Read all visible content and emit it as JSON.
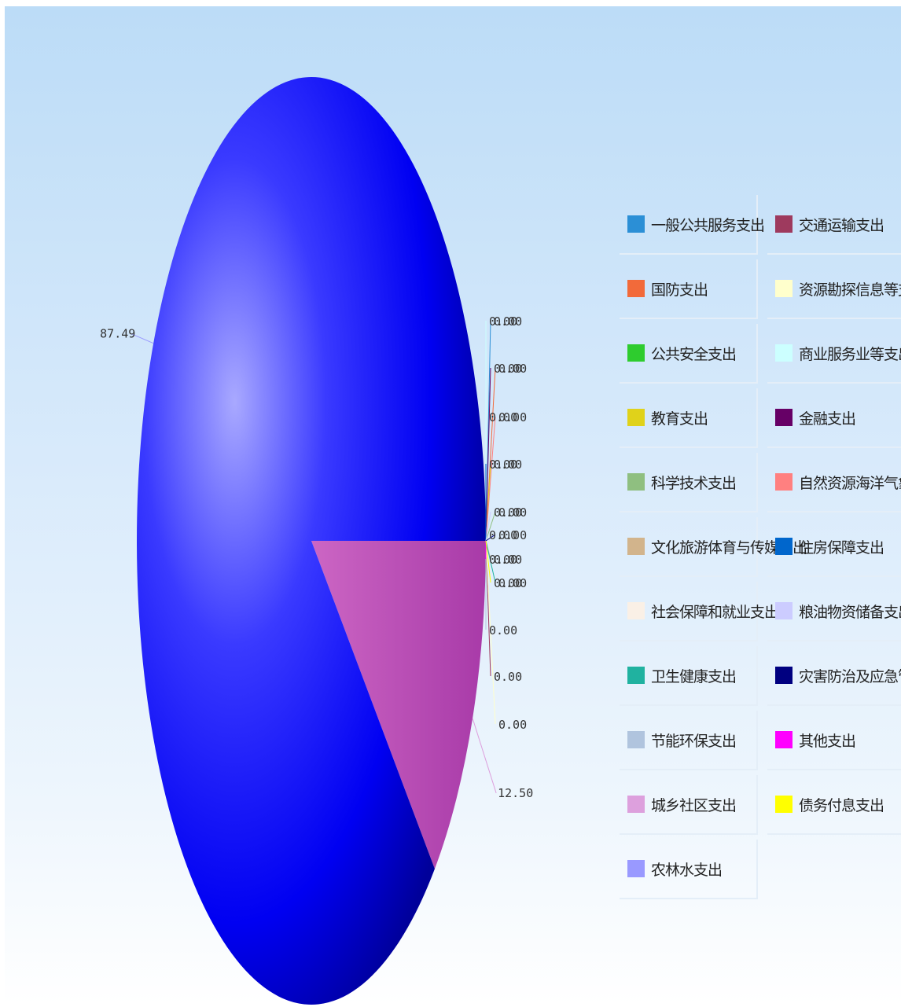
{
  "chart_data": {
    "type": "pie",
    "title": "",
    "slices": [
      {
        "name": "一般公共服务支出",
        "value": 0.0,
        "label": "0.00",
        "color": "#2b8fd6"
      },
      {
        "name": "国防支出",
        "value": 0.0,
        "label": "0.00",
        "color": "#f26a3a"
      },
      {
        "name": "公共安全支出",
        "value": 0.0,
        "label": "0.00",
        "color": "#2ecc2e"
      },
      {
        "name": "教育支出",
        "value": 0.0,
        "label": "0.00",
        "color": "#e0d21a"
      },
      {
        "name": "科学技术支出",
        "value": 0.0,
        "label": "0.00",
        "color": "#8fbf80"
      },
      {
        "name": "文化旅游体育与传媒支出",
        "value": 0.0,
        "label": "0.00",
        "color": "#d2b48c"
      },
      {
        "name": "社会保障和就业支出",
        "value": 0.0,
        "label": "0.00",
        "color": "#faf0e6"
      },
      {
        "name": "卫生健康支出",
        "value": 0.0,
        "label": "0.00",
        "color": "#20b2a0"
      },
      {
        "name": "节能环保支出",
        "value": 0.0,
        "label": "0.00",
        "color": "#b0c4de"
      },
      {
        "name": "城乡社区支出",
        "value": 12.5,
        "label": "12.50",
        "color": "#dda0dd"
      },
      {
        "name": "农林水支出",
        "value": 87.49,
        "label": "87.49",
        "color": "#9999ff"
      },
      {
        "name": "交通运输支出",
        "value": 0.0,
        "label": "0.00",
        "color": "#9e3a5e"
      },
      {
        "name": "资源勘探信息等支出",
        "value": 0.0,
        "label": "0.00",
        "color": "#ffffcc"
      },
      {
        "name": "商业服务业等支出",
        "value": 0.0,
        "label": "0.00",
        "color": "#ccffff"
      },
      {
        "name": "金融支出",
        "value": 0.0,
        "label": "0.00",
        "color": "#660066"
      },
      {
        "name": "自然资源海洋气象等支出",
        "value": 0.0,
        "label": "0.00",
        "color": "#ff8080"
      },
      {
        "name": "住房保障支出",
        "value": 0.0,
        "label": "0.00",
        "color": "#0066cc"
      },
      {
        "name": "粮油物资储备支出",
        "value": 0.0,
        "label": "0.00",
        "color": "#ccccff"
      },
      {
        "name": "灾害防治及应急管理支出",
        "value": 0.0,
        "label": "0.00",
        "color": "#000080"
      },
      {
        "name": "其他支出",
        "value": 0.0,
        "label": "0.00",
        "color": "#ff00ff"
      },
      {
        "name": "债务付息支出",
        "value": 0.0,
        "label": "0.00",
        "color": "#ffff00"
      }
    ],
    "main_slice_rendered_color": "#0000ff",
    "legend_position": "right"
  },
  "legend": {
    "columns": [
      [
        "一般公共服务支出",
        "国防支出",
        "公共安全支出",
        "教育支出",
        "科学技术支出",
        "文化旅游体育与传媒支出",
        "社会保障和就业支出",
        "卫生健康支出",
        "节能环保支出",
        "城乡社区支出",
        "农林水支出"
      ],
      [
        "交通运输支出",
        "资源勘探信息等支出",
        "商业服务业等支出",
        "金融支出",
        "自然资源海洋气象等支出",
        "住房保障支出",
        "粮油物资储备支出",
        "灾害防治及应急管理支出",
        "其他支出",
        "债务付息支出"
      ]
    ]
  }
}
